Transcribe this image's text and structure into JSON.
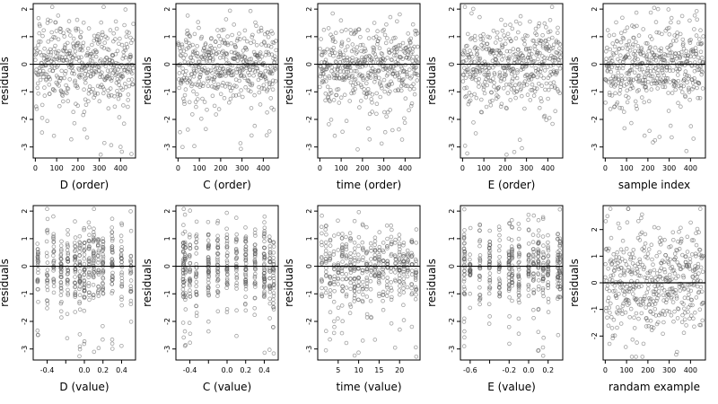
{
  "chart_data": [
    {
      "type": "scatter",
      "xlabel": "D (order)",
      "ylabel": "residuals",
      "xlim": [
        -10,
        470
      ],
      "ylim": [
        -3.4,
        2.2
      ],
      "xticks": [
        0,
        100,
        200,
        300,
        400
      ],
      "yticks": [
        -3,
        -2,
        -1,
        0,
        1,
        2
      ],
      "hline": 0,
      "n": 460,
      "x_kind": "order"
    },
    {
      "type": "scatter",
      "xlabel": "C (order)",
      "ylabel": "residuals",
      "xlim": [
        -10,
        470
      ],
      "ylim": [
        -3.4,
        2.2
      ],
      "xticks": [
        0,
        100,
        200,
        300,
        400
      ],
      "yticks": [
        -3,
        -2,
        -1,
        0,
        1,
        2
      ],
      "hline": 0,
      "n": 460,
      "x_kind": "order"
    },
    {
      "type": "scatter",
      "xlabel": "time (order)",
      "ylabel": "residuals",
      "xlim": [
        -10,
        470
      ],
      "ylim": [
        -3.4,
        2.2
      ],
      "xticks": [
        0,
        100,
        200,
        300,
        400
      ],
      "yticks": [
        -3,
        -2,
        -1,
        0,
        1,
        2
      ],
      "hline": 0,
      "n": 460,
      "x_kind": "order"
    },
    {
      "type": "scatter",
      "xlabel": "E (order)",
      "ylabel": "residuals",
      "xlim": [
        -10,
        470
      ],
      "ylim": [
        -3.4,
        2.2
      ],
      "xticks": [
        0,
        100,
        200,
        300,
        400
      ],
      "yticks": [
        -3,
        -2,
        -1,
        0,
        1,
        2
      ],
      "hline": 0,
      "n": 460,
      "x_kind": "order"
    },
    {
      "type": "scatter",
      "xlabel": "sample index",
      "ylabel": "residuals",
      "xlim": [
        -10,
        470
      ],
      "ylim": [
        -3.4,
        2.2
      ],
      "xticks": [
        0,
        100,
        200,
        300,
        400
      ],
      "yticks": [
        -3,
        -2,
        -1,
        0,
        1,
        2
      ],
      "hline": 0,
      "n": 460,
      "x_kind": "order"
    },
    {
      "type": "scatter",
      "xlabel": "D (value)",
      "ylabel": "residuals",
      "xlim": [
        -0.55,
        0.55
      ],
      "ylim": [
        -3.4,
        2.2
      ],
      "xticks": [
        -0.4,
        -0.2,
        0.0,
        0.2,
        0.4
      ],
      "xticklabels": [
        "-0.4",
        "",
        "0.0",
        "0.2",
        "0.4"
      ],
      "yticks": [
        -3,
        -2,
        -1,
        0,
        1,
        2
      ],
      "hline": 0,
      "n": 460,
      "x_kind": "levels",
      "levels": [
        -0.5,
        -0.4,
        -0.33,
        -0.25,
        -0.18,
        -0.1,
        -0.05,
        0.0,
        0.05,
        0.1,
        0.15,
        0.2,
        0.3,
        0.4,
        0.5
      ]
    },
    {
      "type": "scatter",
      "xlabel": "C (value)",
      "ylabel": "residuals",
      "xlim": [
        -0.55,
        0.55
      ],
      "ylim": [
        -3.4,
        2.2
      ],
      "xticks": [
        -0.4,
        -0.2,
        0.0,
        0.2,
        0.4
      ],
      "xticklabels": [
        "-0.4",
        "",
        "0.0",
        "0.2",
        "0.4"
      ],
      "yticks": [
        -3,
        -2,
        -1,
        0,
        1,
        2
      ],
      "hline": 0,
      "n": 460,
      "x_kind": "levels",
      "levels": [
        -0.47,
        -0.45,
        -0.4,
        -0.33,
        -0.2,
        -0.1,
        0.0,
        0.1,
        0.2,
        0.3,
        0.4,
        0.46,
        0.5
      ]
    },
    {
      "type": "scatter",
      "xlabel": "time (value)",
      "ylabel": "residuals",
      "xlim": [
        0,
        25
      ],
      "ylim": [
        -3.4,
        2.2
      ],
      "xticks": [
        5,
        10,
        15,
        20
      ],
      "yticks": [
        -3,
        -2,
        -1,
        0,
        1,
        2
      ],
      "hline": 0,
      "n": 460,
      "x_kind": "levels",
      "levels": [
        1,
        2,
        3,
        4,
        5,
        6,
        7,
        8,
        9,
        10,
        11,
        12,
        13,
        14,
        15,
        16,
        17,
        18,
        19,
        20,
        21,
        22,
        23,
        24
      ]
    },
    {
      "type": "scatter",
      "xlabel": "E (value)",
      "ylabel": "residuals",
      "xlim": [
        -0.7,
        0.35
      ],
      "ylim": [
        -3.4,
        2.2
      ],
      "xticks": [
        -0.6,
        -0.4,
        -0.2,
        0.0,
        0.2
      ],
      "xticklabels": [
        "-0.6",
        "",
        "-0.2",
        "0.0",
        "0.2"
      ],
      "yticks": [
        -3,
        -2,
        -1,
        0,
        1,
        2
      ],
      "hline": 0,
      "n": 460,
      "x_kind": "levels",
      "levels": [
        -0.66,
        -0.6,
        -0.5,
        -0.4,
        -0.3,
        -0.2,
        -0.17,
        -0.1,
        0.0,
        0.05,
        0.1,
        0.15,
        0.2,
        0.3,
        0.32
      ]
    },
    {
      "type": "scatter",
      "xlabel": "randam example",
      "ylabel": "residuals",
      "xlim": [
        -10,
        470
      ],
      "ylim": [
        -2.9,
        2.9
      ],
      "xticks": [
        0,
        100,
        200,
        300,
        400
      ],
      "yticks": [
        -2,
        -1,
        0,
        1,
        2
      ],
      "hline": 0,
      "n": 460,
      "x_kind": "order"
    }
  ]
}
